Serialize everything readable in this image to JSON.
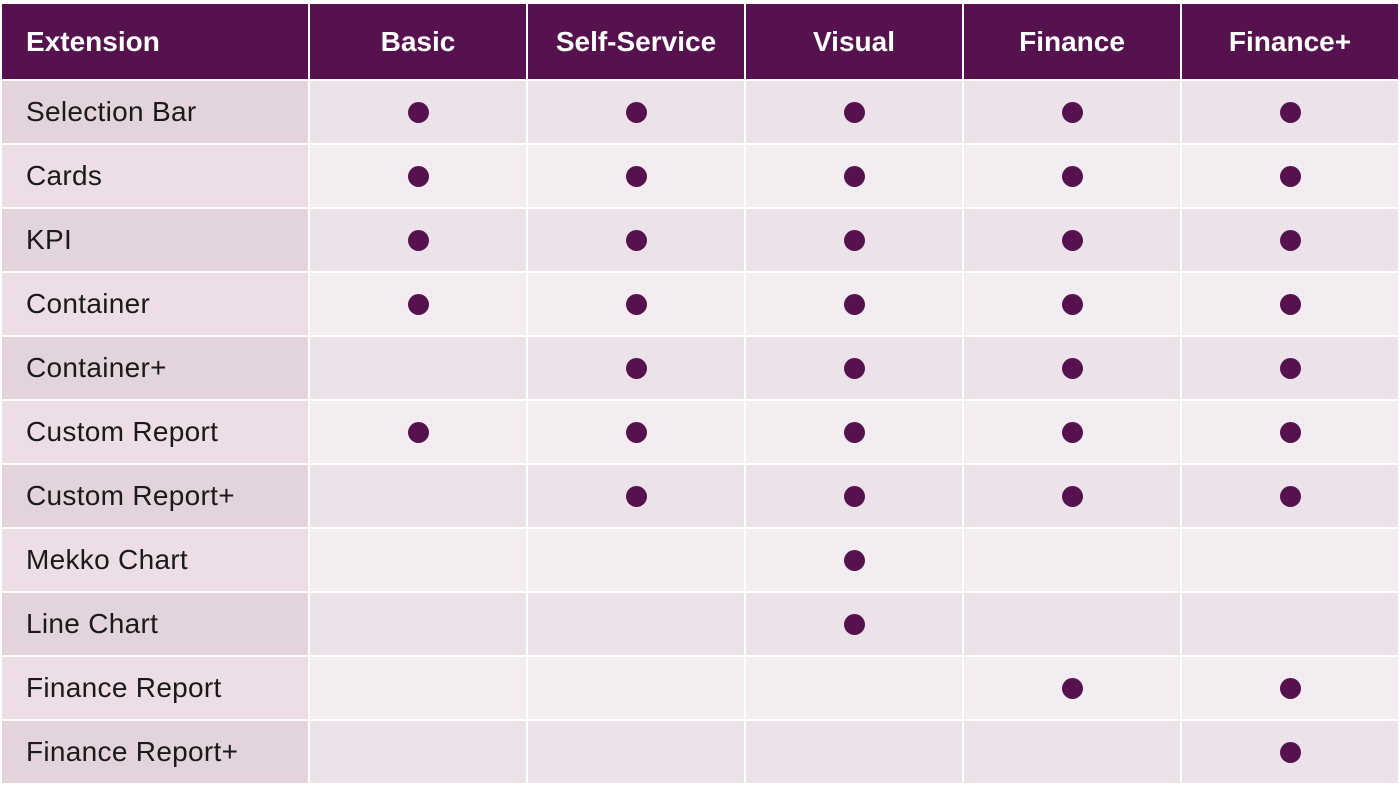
{
  "colors": {
    "header_bg": "#56124e",
    "header_text": "#ffffff",
    "dot": "#56124e",
    "row_label_odd": "#e2d3dd",
    "row_label_even": "#ecdde6",
    "cell_odd": "#ebe3e9",
    "cell_even": "#f3edf1"
  },
  "table": {
    "headers": [
      "Extension",
      "Basic",
      "Self-Service",
      "Visual",
      "Finance",
      "Finance+"
    ],
    "rows": [
      {
        "label": "Selection Bar",
        "marks": [
          true,
          true,
          true,
          true,
          true
        ]
      },
      {
        "label": "Cards",
        "marks": [
          true,
          true,
          true,
          true,
          true
        ]
      },
      {
        "label": "KPI",
        "marks": [
          true,
          true,
          true,
          true,
          true
        ]
      },
      {
        "label": "Container",
        "marks": [
          true,
          true,
          true,
          true,
          true
        ]
      },
      {
        "label": "Container+",
        "marks": [
          false,
          true,
          true,
          true,
          true
        ]
      },
      {
        "label": "Custom Report",
        "marks": [
          true,
          true,
          true,
          true,
          true
        ]
      },
      {
        "label": "Custom Report+",
        "marks": [
          false,
          true,
          true,
          true,
          true
        ]
      },
      {
        "label": "Mekko Chart",
        "marks": [
          false,
          false,
          true,
          false,
          false
        ]
      },
      {
        "label": "Line Chart",
        "marks": [
          false,
          false,
          true,
          false,
          false
        ]
      },
      {
        "label": "Finance Report",
        "marks": [
          false,
          false,
          false,
          true,
          true
        ]
      },
      {
        "label": "Finance Report+",
        "marks": [
          false,
          false,
          false,
          false,
          true
        ]
      }
    ],
    "mark_icon": "filled-circle-icon"
  }
}
